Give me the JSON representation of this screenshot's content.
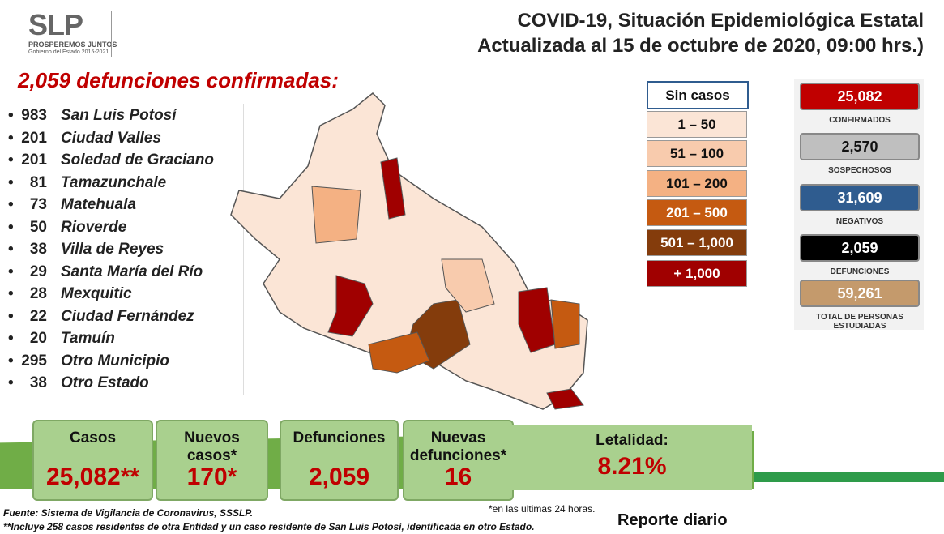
{
  "logo": {
    "name": "SLP",
    "slogan": "PROSPEREMOS JUNTOS",
    "subtitle": "Gobierno del Estado 2015-2021"
  },
  "header": {
    "title": "COVID-19, Situación Epidemiológica Estatal",
    "subtitle": "Actualizada al 15 de octubre de 2020, 09:00 hrs.)"
  },
  "deaths": {
    "heading": "2,059 defunciones confirmadas:",
    "rows": [
      {
        "value": "983",
        "name": "San Luis Potosí"
      },
      {
        "value": "201",
        "name": "Ciudad Valles"
      },
      {
        "value": "201",
        "name": "Soledad de Graciano"
      },
      {
        "value": "81",
        "name": "Tamazunchale"
      },
      {
        "value": "73",
        "name": "Matehuala"
      },
      {
        "value": "50",
        "name": "Rioverde"
      },
      {
        "value": "38",
        "name": "Villa de Reyes"
      },
      {
        "value": "29",
        "name": "Santa María del Río"
      },
      {
        "value": "28",
        "name": "Mexquitic"
      },
      {
        "value": "22",
        "name": "Ciudad Fernández"
      },
      {
        "value": "20",
        "name": "Tamuín"
      },
      {
        "value": "295",
        "name": "Otro Municipio"
      },
      {
        "value": "38",
        "name": "Otro Estado"
      }
    ]
  },
  "legend": [
    {
      "label": "Sin casos",
      "color": "#ffffff"
    },
    {
      "label": "1 – 50",
      "color": "#fbe5d6"
    },
    {
      "label": "51 – 100",
      "color": "#f8cbad"
    },
    {
      "label": "101 – 200",
      "color": "#f4b183"
    },
    {
      "label": "201 – 500",
      "color": "#c55a11"
    },
    {
      "label": "501 – 1,000",
      "color": "#843c0c"
    },
    {
      "label": "+ 1,000",
      "color": "#a00000"
    }
  ],
  "stats": [
    {
      "value": "25,082",
      "label": "CONFIRMADOS",
      "color": "#c00000"
    },
    {
      "value": "2,570",
      "label": "SOSPECHOSOS",
      "color": "#bfbfbf"
    },
    {
      "value": "31,609",
      "label": "NEGATIVOS",
      "color": "#2f5c8f"
    },
    {
      "value": "2,059",
      "label": "DEFUNCIONES",
      "color": "#000000"
    },
    {
      "value": "59,261",
      "label": "TOTAL DE PERSONAS ESTUDIADAS",
      "color": "#c49a6c"
    }
  ],
  "summary": [
    {
      "label": "Casos",
      "value": "25,082**"
    },
    {
      "label": "Nuevos casos*",
      "value": "170*"
    },
    {
      "label": "Defunciones",
      "value": "2,059"
    },
    {
      "label": "Nuevas defunciones*",
      "value": "16"
    },
    {
      "label": "Letalidad:",
      "value": "8.21%"
    }
  ],
  "footer": {
    "source": "Fuente: Sistema de Vigilancia de Coronavirus, SSSLP.",
    "note": "**Incluye 258 casos residentes de otra Entidad y un caso residente de San Luis Potosí, identificada en otro Estado.",
    "note24": "*en las ultimas 24 horas.",
    "report": "Reporte diario"
  }
}
